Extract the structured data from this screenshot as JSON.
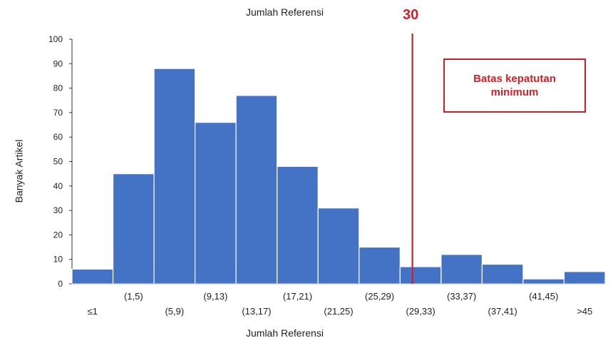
{
  "chart_data": {
    "type": "bar",
    "title": "Jumlah Referensi",
    "xlabel": "Jumlah Referensi",
    "ylabel": "Banyak Artikel",
    "categories": [
      "≤1",
      "(1,5)",
      "(5,9)",
      "(9,13)",
      "(13,17)",
      "(17,21)",
      "(21,25)",
      "(25,29)",
      "(29,33)",
      "(33,37)",
      "(37,41)",
      "(41,45)",
      ">45"
    ],
    "values": [
      6,
      45,
      88,
      66,
      77,
      48,
      31,
      15,
      7,
      12,
      8,
      2,
      5
    ],
    "ylim": [
      0,
      100
    ],
    "yticks": [
      0,
      10,
      20,
      30,
      40,
      50,
      60,
      70,
      80,
      90,
      100
    ],
    "bar_color": "#4472c4",
    "marker": {
      "value": 30,
      "label": "30",
      "color": "#d21f26"
    },
    "annotation": "Batas kepatutan minimum"
  }
}
